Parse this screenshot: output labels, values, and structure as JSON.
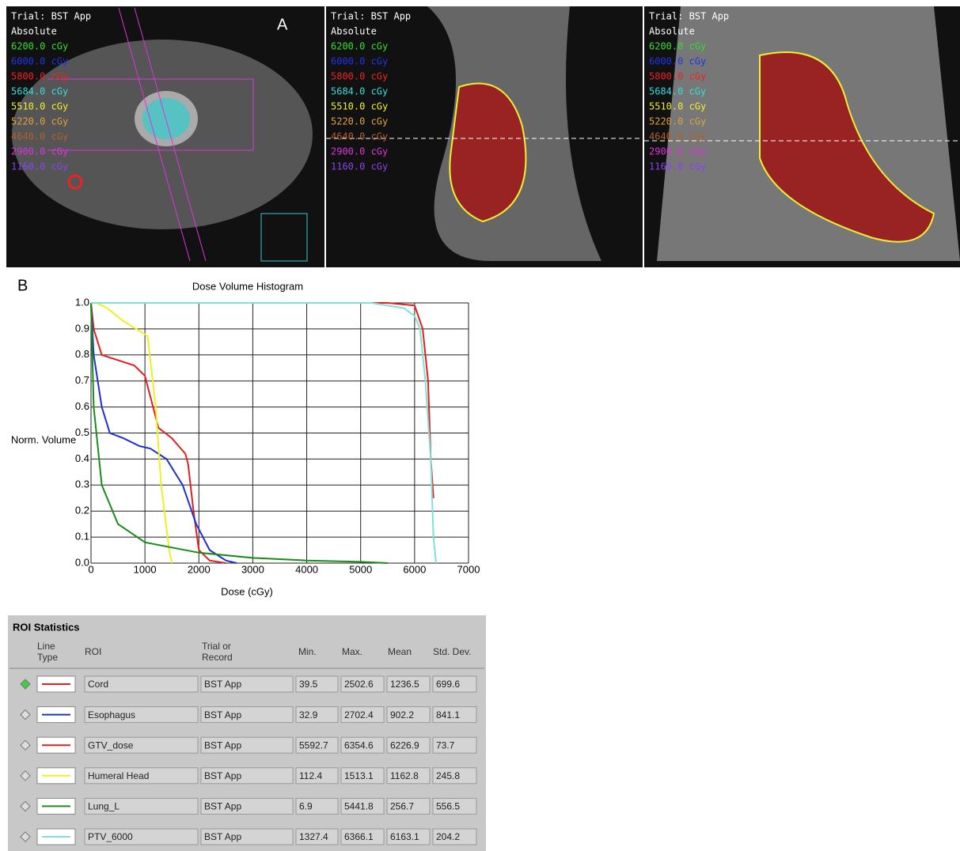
{
  "panel_labels": [
    "A",
    "B"
  ],
  "ct_views": [
    {
      "trial": "Trial: BST App",
      "mode": "Absolute"
    },
    {
      "trial": "Trial: BST App",
      "mode": "Absolute"
    },
    {
      "trial": "Trial: BST App",
      "mode": "Absolute"
    }
  ],
  "isodose_levels": [
    {
      "label": "6200.0 cGy",
      "color": "#33dd33"
    },
    {
      "label": "6000.0 cGy",
      "color": "#2233ee"
    },
    {
      "label": "5800.0 cGy",
      "color": "#ee2222"
    },
    {
      "label": "5684.0 cGy",
      "color": "#33dddd"
    },
    {
      "label": "5510.0 cGy",
      "color": "#eeee33"
    },
    {
      "label": "5220.0 cGy",
      "color": "#e0a040"
    },
    {
      "label": "4640.0 cGy",
      "color": "#b06030"
    },
    {
      "label": "2900.0 cGy",
      "color": "#dd33dd"
    },
    {
      "label": "1160.0 cGy",
      "color": "#8844ee"
    }
  ],
  "chart_data": {
    "type": "line",
    "title": "Dose Volume Histogram",
    "x_label": "Dose (cGy)",
    "y_label": "Norm. Volume",
    "xlim": [
      0,
      7000
    ],
    "ylim": [
      0,
      1
    ],
    "xticks": [
      0,
      1000,
      2000,
      3000,
      4000,
      5000,
      6000,
      7000
    ],
    "yticks": [
      {
        "value": 0,
        "label": "0.0"
      },
      0.1,
      0.2,
      0.3,
      0.4,
      0.5,
      0.6,
      0.7,
      0.8,
      0.9,
      {
        "value": 1,
        "label": "1.0"
      }
    ],
    "grid": true,
    "series": [
      {
        "color": "#e02020",
        "x": [
          0,
          50,
          200,
          500,
          800,
          1000,
          1150,
          1250,
          1500,
          1750,
          1800,
          1900,
          2000,
          2200,
          2500
        ],
        "values": [
          1,
          0.9,
          0.8,
          0.78,
          0.76,
          0.72,
          0.6,
          0.52,
          0.48,
          0.42,
          0.38,
          0.2,
          0.05,
          0.01,
          0
        ]
      },
      {
        "color": "#2030d0",
        "x": [
          0,
          50,
          200,
          350,
          600,
          900,
          1100,
          1400,
          1700,
          1950,
          2200,
          2500,
          2700
        ],
        "values": [
          1,
          0.8,
          0.6,
          0.5,
          0.48,
          0.45,
          0.44,
          0.4,
          0.3,
          0.15,
          0.05,
          0.01,
          0
        ]
      },
      {
        "color": "#e02020",
        "x": [
          4800,
          5500,
          6000,
          6150,
          6250,
          6300,
          6350
        ],
        "values": [
          1,
          1,
          0.99,
          0.9,
          0.7,
          0.4,
          0.25
        ]
      },
      {
        "color": "#f0f020",
        "x": [
          100,
          300,
          600,
          1000,
          1050,
          1200,
          1300,
          1450,
          1500
        ],
        "values": [
          1,
          0.98,
          0.93,
          0.88,
          0.87,
          0.6,
          0.3,
          0.05,
          0
        ]
      },
      {
        "color": "#1a8a1a",
        "x": [
          0,
          50,
          200,
          500,
          1000,
          1500,
          2000,
          3000,
          4000,
          5000,
          5500
        ],
        "values": [
          1,
          0.6,
          0.3,
          0.15,
          0.08,
          0.06,
          0.04,
          0.02,
          0.01,
          0.005,
          0
        ]
      },
      {
        "color": "#80e0d8",
        "x": [
          0,
          5200,
          5800,
          6000,
          6100,
          6200,
          6300,
          6350,
          6400
        ],
        "values": [
          1,
          1,
          0.98,
          0.95,
          0.9,
          0.7,
          0.4,
          0.1,
          0
        ]
      }
    ]
  },
  "roi_table": {
    "title": "ROI Statistics",
    "selected_row": 0,
    "headers": [
      "Line Type",
      "ROI",
      "Trial or Record",
      "Min.",
      "Max.",
      "Mean",
      "Std. Dev."
    ],
    "rows": [
      {
        "color": "#e02020",
        "roi": "Cord",
        "trial": "BST App",
        "min": 39.5,
        "max": 2502.6,
        "mean": 1236.5,
        "std": 699.6
      },
      {
        "color": "#2030d0",
        "roi": "Esophagus",
        "trial": "BST App",
        "min": 32.9,
        "max": 2702.4,
        "mean": 902.2,
        "std": 841.1
      },
      {
        "color": "#e02020",
        "roi": "GTV_dose",
        "trial": "BST App",
        "min": 5592.7,
        "max": 6354.6,
        "mean": 6226.9,
        "std": 73.7
      },
      {
        "color": "#f0f020",
        "roi": "Humeral Head",
        "trial": "BST App",
        "min": 112.4,
        "max": 1513.1,
        "mean": 1162.8,
        "std": 245.8
      },
      {
        "color": "#1a8a1a",
        "roi": "Lung_L",
        "trial": "BST App",
        "min": 6.9,
        "max": 5441.8,
        "mean": 256.7,
        "std": 556.5
      },
      {
        "color": "#80e0d8",
        "roi": "PTV_6000",
        "trial": "BST App",
        "min": 1327.4,
        "max": 6366.1,
        "mean": 6163.1,
        "std": 204.2
      }
    ]
  }
}
